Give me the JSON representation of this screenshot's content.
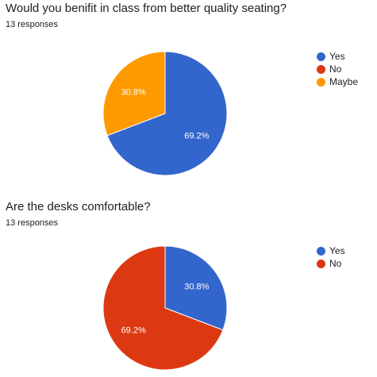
{
  "charts": [
    {
      "title": "Would you benifit in class from better quality seating?",
      "responses": "13 responses"
    },
    {
      "title": "Are the desks comfortable?",
      "responses": "13 responses"
    }
  ],
  "chart_data": [
    {
      "type": "pie",
      "categories": [
        "Yes",
        "No",
        "Maybe"
      ],
      "values": [
        69.2,
        0,
        30.8
      ],
      "labels": [
        "69.2%",
        "",
        "30.8%"
      ],
      "colors": [
        "#3366cc",
        "#dc3912",
        "#ff9900"
      ],
      "legend": "right"
    },
    {
      "type": "pie",
      "categories": [
        "Yes",
        "No"
      ],
      "values": [
        30.8,
        69.2
      ],
      "labels": [
        "30.8%",
        "69.2%"
      ],
      "colors": [
        "#3366cc",
        "#dc3912"
      ],
      "legend": "right"
    }
  ]
}
